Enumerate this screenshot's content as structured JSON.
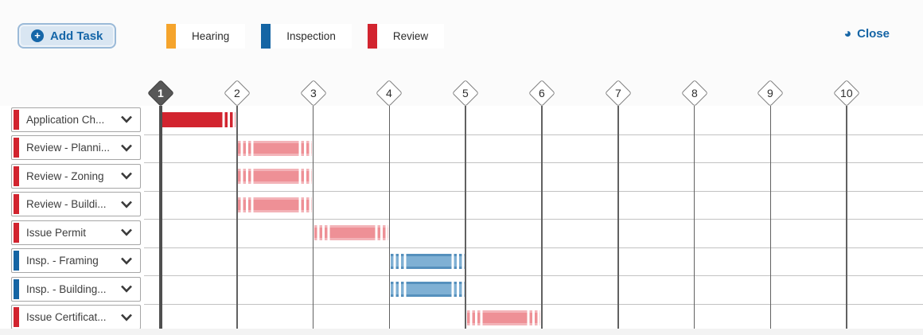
{
  "header": {
    "add_task_label": "Add Task",
    "add_task_icon": "+",
    "close_label": "Close",
    "close_icon": "◕"
  },
  "legend": {
    "items": [
      {
        "label": "Hearing",
        "color": "#f5a42c"
      },
      {
        "label": "Inspection",
        "color": "#1565a4"
      },
      {
        "label": "Review",
        "color": "#d2242f"
      }
    ]
  },
  "timeline": {
    "markers": [
      {
        "label": "1",
        "selected": true
      },
      {
        "label": "2",
        "selected": false
      },
      {
        "label": "3",
        "selected": false
      },
      {
        "label": "4",
        "selected": false
      },
      {
        "label": "5",
        "selected": false
      },
      {
        "label": "6",
        "selected": false
      },
      {
        "label": "7",
        "selected": false
      },
      {
        "label": "8",
        "selected": false
      },
      {
        "label": "9",
        "selected": false
      },
      {
        "label": "10",
        "selected": false
      }
    ]
  },
  "tasks": [
    {
      "label": "Application Ch...",
      "category": "review",
      "bar": {
        "start": 1,
        "end": 2,
        "style": "solid-red",
        "hatch": "right"
      }
    },
    {
      "label": "Review - Planni...",
      "category": "review",
      "bar": {
        "start": 2,
        "end": 3,
        "style": "light-red",
        "hatch": "both"
      }
    },
    {
      "label": "Review - Zoning",
      "category": "review",
      "bar": {
        "start": 2,
        "end": 3,
        "style": "light-red",
        "hatch": "both"
      }
    },
    {
      "label": "Review - Buildi...",
      "category": "review",
      "bar": {
        "start": 2,
        "end": 3,
        "style": "light-red",
        "hatch": "both"
      }
    },
    {
      "label": "Issue Permit",
      "category": "review",
      "bar": {
        "start": 3,
        "end": 4,
        "style": "light-red",
        "hatch": "both"
      }
    },
    {
      "label": "Insp. - Framing",
      "category": "inspection",
      "bar": {
        "start": 4,
        "end": 5,
        "style": "blue",
        "hatch": "both"
      }
    },
    {
      "label": "Insp. - Building...",
      "category": "inspection",
      "bar": {
        "start": 4,
        "end": 5,
        "style": "blue",
        "hatch": "both"
      }
    },
    {
      "label": "Issue Certificat...",
      "category": "review",
      "bar": {
        "start": 5,
        "end": 6,
        "style": "light-red",
        "hatch": "both"
      }
    }
  ]
}
